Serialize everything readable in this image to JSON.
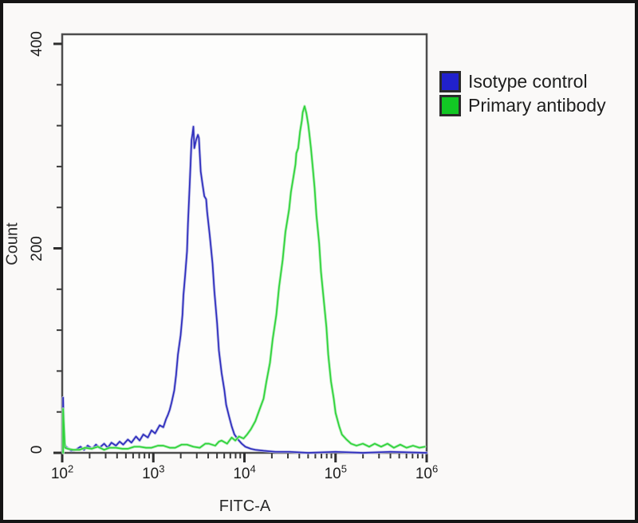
{
  "figure": {
    "background_color": "#faf9f8",
    "frame_color": "#4d4d4d",
    "outer_border_color": "#151515"
  },
  "legend": {
    "items": [
      {
        "label": "Isotype control",
        "swatch_color": "#2121cc"
      },
      {
        "label": "Primary antibody",
        "swatch_color": "#12c724"
      }
    ]
  },
  "chart_data": {
    "type": "line",
    "subtype": "flow-cytometry-histogram-overlay",
    "title": "",
    "xlabel": "FITC-A",
    "ylabel": "Count",
    "x_scale": "log10",
    "xlim_exp": [
      2,
      6
    ],
    "ylim": [
      0,
      400
    ],
    "grid": false,
    "legend_position": "top-right-outside",
    "x_axis": {
      "tick_labels": [
        {
          "value": 2,
          "base": "10",
          "exp": "2"
        },
        {
          "value": 3,
          "base": "10",
          "exp": "3"
        },
        {
          "value": 4,
          "base": "10",
          "exp": "4"
        },
        {
          "value": 5,
          "base": "10",
          "exp": "5"
        },
        {
          "value": 6,
          "base": "10",
          "exp": "6"
        }
      ],
      "minor_ticks": "log decades 2-9"
    },
    "y_axis": {
      "tick_labels": [
        {
          "value": 0,
          "label": "0"
        },
        {
          "value": 200,
          "label": "200"
        },
        {
          "value": 400,
          "label": "400"
        }
      ],
      "minor_tick_step": 40
    },
    "series": [
      {
        "name": "Isotype control",
        "color": "#2d2dbd",
        "halo_color": "#b9b9e6",
        "peak": {
          "x_log10": 3.44,
          "count": 319
        },
        "points": [
          [
            2.01,
            0
          ],
          [
            2.01,
            54
          ],
          [
            2.02,
            10
          ],
          [
            2.04,
            6
          ],
          [
            2.07,
            4
          ],
          [
            2.1,
            2
          ],
          [
            2.15,
            3
          ],
          [
            2.2,
            6
          ],
          [
            2.24,
            3
          ],
          [
            2.28,
            7
          ],
          [
            2.33,
            4
          ],
          [
            2.37,
            8
          ],
          [
            2.41,
            5
          ],
          [
            2.46,
            9
          ],
          [
            2.5,
            5
          ],
          [
            2.54,
            10
          ],
          [
            2.59,
            7
          ],
          [
            2.63,
            11
          ],
          [
            2.67,
            8
          ],
          [
            2.72,
            13
          ],
          [
            2.76,
            10
          ],
          [
            2.81,
            16
          ],
          [
            2.85,
            12
          ],
          [
            2.89,
            18
          ],
          [
            2.94,
            15
          ],
          [
            2.98,
            22
          ],
          [
            3.02,
            19
          ],
          [
            3.07,
            27
          ],
          [
            3.11,
            25
          ],
          [
            3.14,
            33
          ],
          [
            3.16,
            37
          ],
          [
            3.18,
            42
          ],
          [
            3.2,
            49
          ],
          [
            3.23,
            61
          ],
          [
            3.25,
            76
          ],
          [
            3.27,
            96
          ],
          [
            3.3,
            115
          ],
          [
            3.32,
            135
          ],
          [
            3.33,
            154
          ],
          [
            3.35,
            174
          ],
          [
            3.37,
            197
          ],
          [
            3.38,
            224
          ],
          [
            3.4,
            263
          ],
          [
            3.42,
            306
          ],
          [
            3.43,
            312
          ],
          [
            3.44,
            319
          ],
          [
            3.45,
            298
          ],
          [
            3.47,
            306
          ],
          [
            3.49,
            311
          ],
          [
            3.5,
            308
          ],
          [
            3.52,
            275
          ],
          [
            3.54,
            263
          ],
          [
            3.56,
            251
          ],
          [
            3.58,
            248
          ],
          [
            3.59,
            236
          ],
          [
            3.62,
            212
          ],
          [
            3.65,
            185
          ],
          [
            3.67,
            158
          ],
          [
            3.7,
            127
          ],
          [
            3.72,
            100
          ],
          [
            3.75,
            78
          ],
          [
            3.78,
            61
          ],
          [
            3.8,
            47
          ],
          [
            3.83,
            36
          ],
          [
            3.86,
            26
          ],
          [
            3.89,
            18
          ],
          [
            3.93,
            13
          ],
          [
            3.97,
            9
          ],
          [
            4.01,
            6
          ],
          [
            4.07,
            4
          ],
          [
            4.12,
            3
          ],
          [
            4.21,
            2
          ],
          [
            4.34,
            1
          ],
          [
            4.5,
            1
          ],
          [
            4.7,
            0
          ],
          [
            5.0,
            1
          ],
          [
            5.3,
            0
          ],
          [
            5.6,
            1
          ],
          [
            6.0,
            0
          ]
        ]
      },
      {
        "name": "Primary antibody",
        "color": "#2fd33a",
        "halo_color": "#aeecb2",
        "peak": {
          "x_log10": 4.66,
          "count": 339
        },
        "points": [
          [
            2.01,
            0
          ],
          [
            2.01,
            43
          ],
          [
            2.03,
            5
          ],
          [
            2.06,
            4
          ],
          [
            2.12,
            3
          ],
          [
            2.19,
            3
          ],
          [
            2.25,
            5
          ],
          [
            2.32,
            4
          ],
          [
            2.39,
            6
          ],
          [
            2.46,
            3
          ],
          [
            2.52,
            5
          ],
          [
            2.59,
            5
          ],
          [
            2.66,
            4
          ],
          [
            2.72,
            4
          ],
          [
            2.79,
            6
          ],
          [
            2.85,
            6
          ],
          [
            2.92,
            5
          ],
          [
            2.98,
            5
          ],
          [
            3.05,
            7
          ],
          [
            3.11,
            7
          ],
          [
            3.18,
            5
          ],
          [
            3.24,
            5
          ],
          [
            3.31,
            8
          ],
          [
            3.37,
            8
          ],
          [
            3.44,
            6
          ],
          [
            3.51,
            5
          ],
          [
            3.57,
            9
          ],
          [
            3.61,
            9
          ],
          [
            3.68,
            7
          ],
          [
            3.72,
            11
          ],
          [
            3.75,
            12
          ],
          [
            3.81,
            9
          ],
          [
            3.86,
            15
          ],
          [
            3.9,
            12
          ],
          [
            3.94,
            16
          ],
          [
            3.99,
            14
          ],
          [
            4.03,
            18
          ],
          [
            4.07,
            23
          ],
          [
            4.12,
            31
          ],
          [
            4.16,
            41
          ],
          [
            4.21,
            53
          ],
          [
            4.24,
            69
          ],
          [
            4.28,
            88
          ],
          [
            4.31,
            111
          ],
          [
            4.35,
            135
          ],
          [
            4.38,
            162
          ],
          [
            4.42,
            189
          ],
          [
            4.45,
            216
          ],
          [
            4.49,
            238
          ],
          [
            4.51,
            255
          ],
          [
            4.54,
            271
          ],
          [
            4.56,
            282
          ],
          [
            4.57,
            293
          ],
          [
            4.59,
            298
          ],
          [
            4.61,
            314
          ],
          [
            4.63,
            325
          ],
          [
            4.64,
            333
          ],
          [
            4.66,
            339
          ],
          [
            4.68,
            332
          ],
          [
            4.7,
            321
          ],
          [
            4.71,
            314
          ],
          [
            4.73,
            298
          ],
          [
            4.75,
            279
          ],
          [
            4.77,
            259
          ],
          [
            4.79,
            232
          ],
          [
            4.82,
            205
          ],
          [
            4.84,
            177
          ],
          [
            4.87,
            150
          ],
          [
            4.9,
            123
          ],
          [
            4.92,
            96
          ],
          [
            4.95,
            70
          ],
          [
            4.98,
            53
          ],
          [
            5.0,
            39
          ],
          [
            5.04,
            26
          ],
          [
            5.07,
            18
          ],
          [
            5.12,
            13
          ],
          [
            5.17,
            9
          ],
          [
            5.23,
            7
          ],
          [
            5.3,
            9
          ],
          [
            5.37,
            6
          ],
          [
            5.43,
            9
          ],
          [
            5.5,
            6
          ],
          [
            5.57,
            9
          ],
          [
            5.64,
            5
          ],
          [
            5.71,
            8
          ],
          [
            5.78,
            5
          ],
          [
            5.85,
            7
          ],
          [
            5.92,
            5
          ],
          [
            5.98,
            6
          ]
        ]
      }
    ]
  }
}
